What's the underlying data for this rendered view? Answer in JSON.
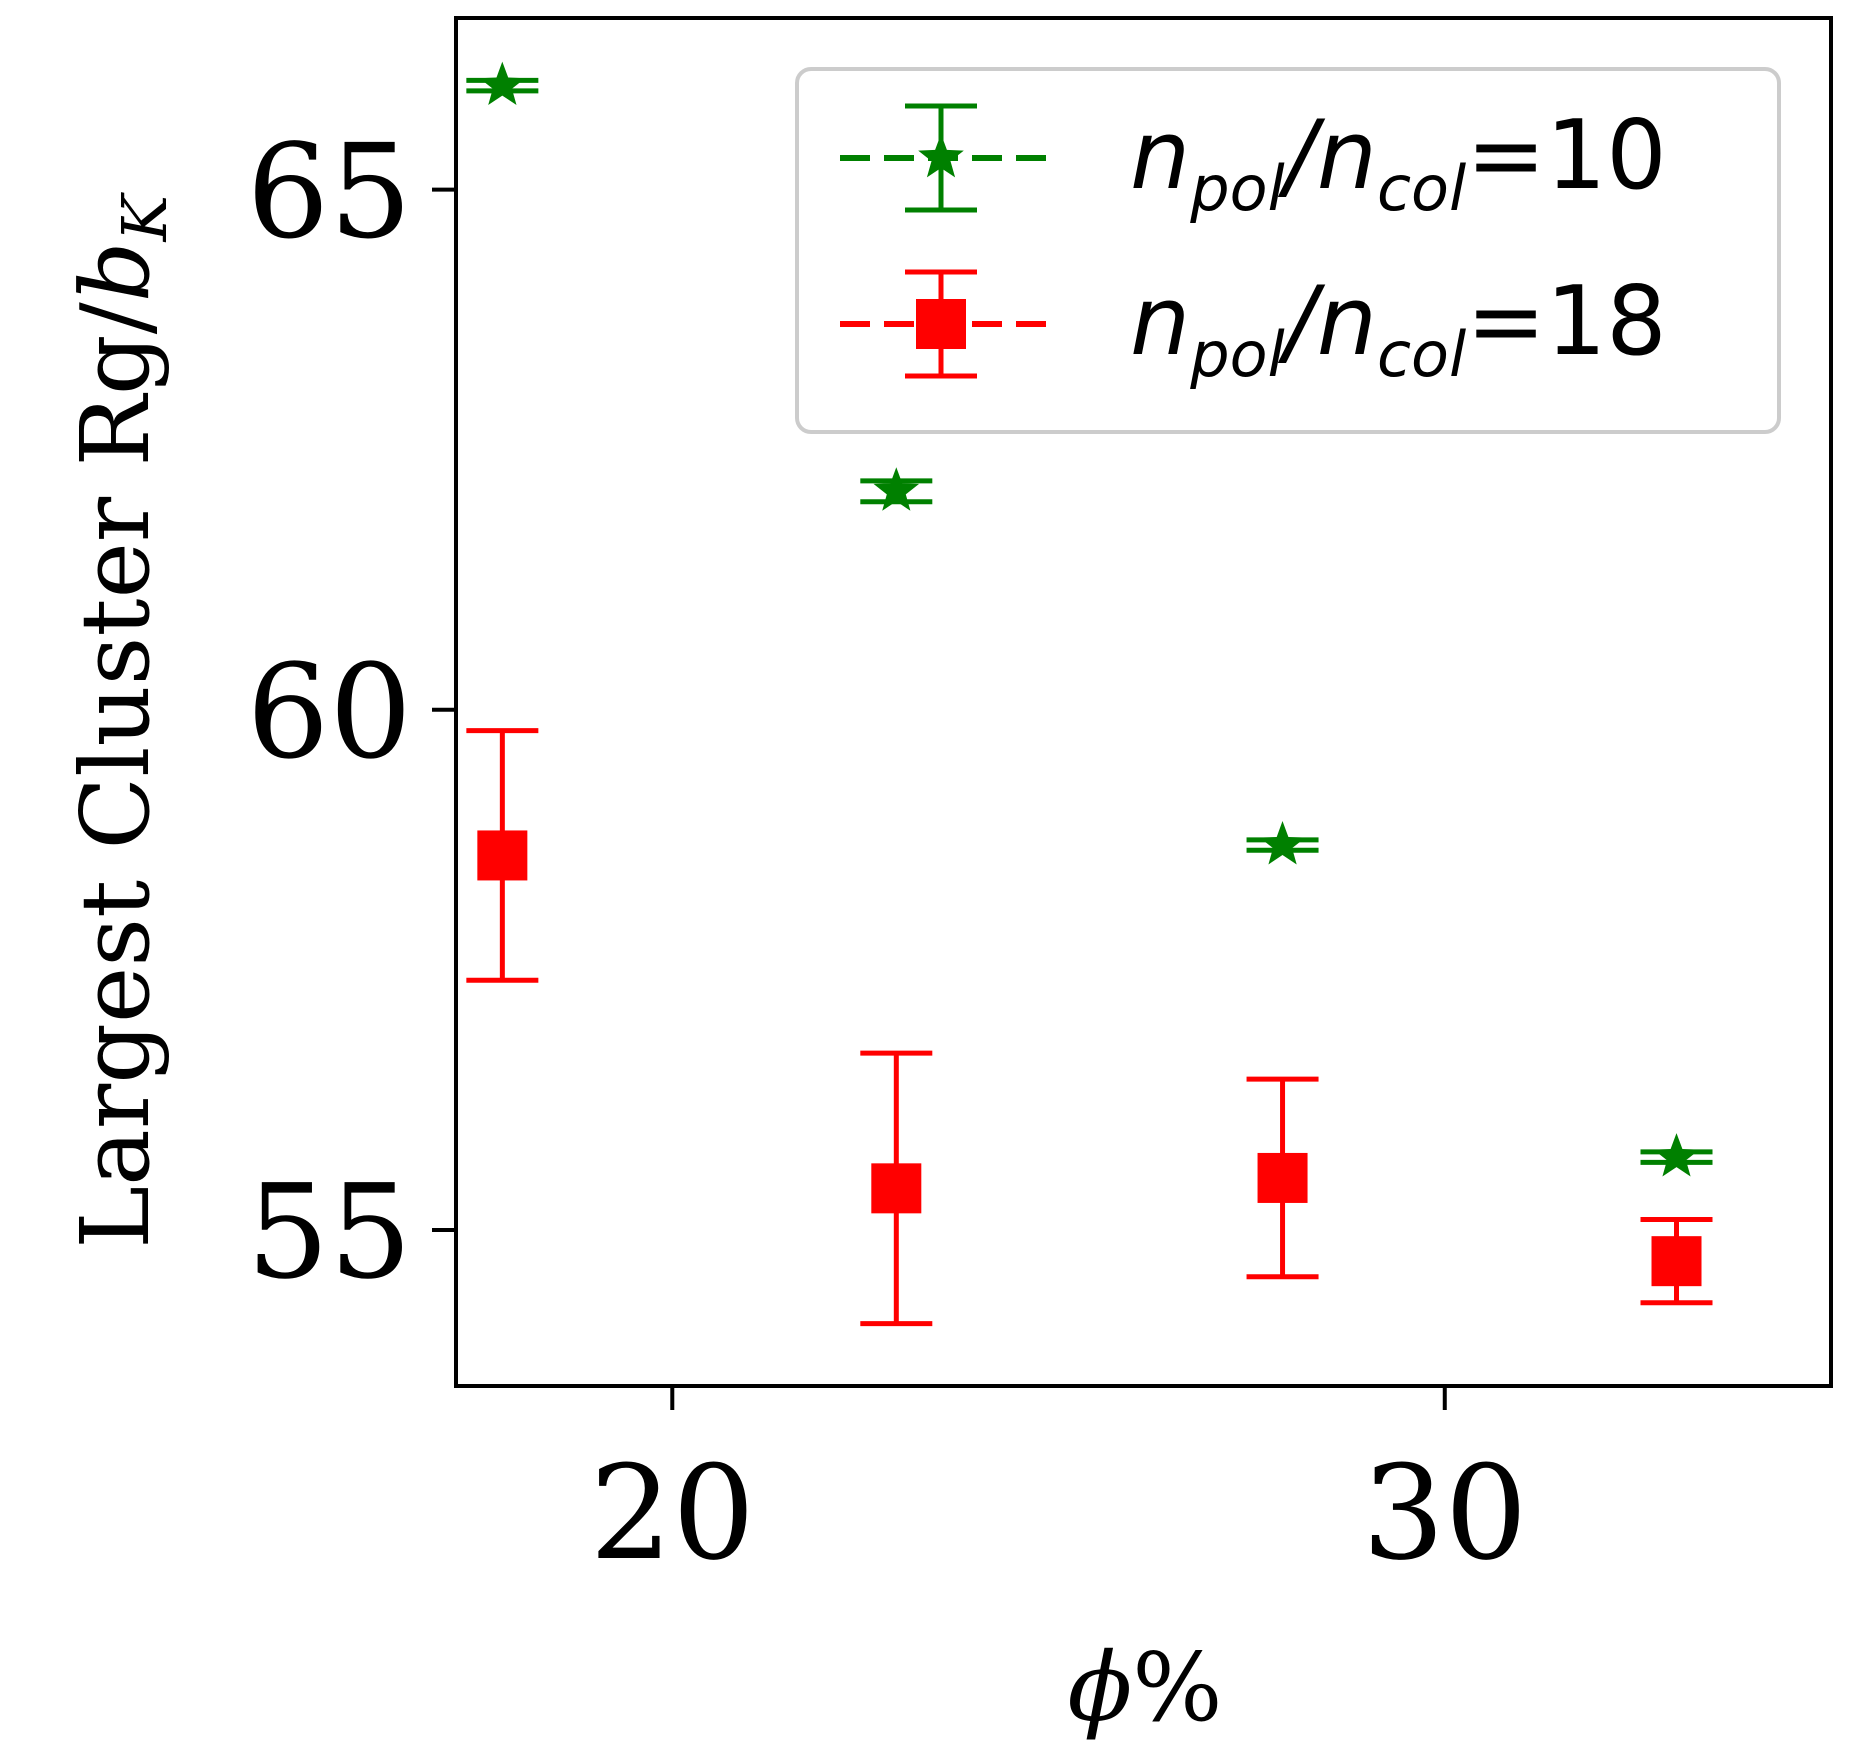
{
  "chart_data": {
    "type": "scatter",
    "title": "",
    "xlabel_symbol": "ϕ",
    "xlabel_unit": "%",
    "ylabel_text": "Largest Cluster Rg/",
    "ylabel_symbol": "b",
    "ylabel_sub": "K",
    "xlim": [
      17.2,
      35.0
    ],
    "ylim": [
      53.5,
      66.65
    ],
    "xticks": [
      20,
      30
    ],
    "xtick_labels": [
      "20",
      "30"
    ],
    "yticks": [
      55,
      60,
      65
    ],
    "ytick_labels": [
      "55",
      "60",
      "65"
    ],
    "grid": false,
    "legend_position": "top-right",
    "series": [
      {
        "name": "n_pol/n_col=10",
        "legend_base": "n",
        "legend_sub1": "pol",
        "legend_sep": "/",
        "legend_sub2": "col",
        "legend_value": "=10",
        "color": "#008000",
        "marker": "star",
        "x": [
          17.8,
          22.9,
          27.9,
          33.0
        ],
        "y": [
          66.0,
          62.1,
          58.7,
          55.7
        ],
        "err": [
          0.05,
          0.1,
          0.05,
          0.05
        ]
      },
      {
        "name": "n_pol/n_col=18",
        "legend_base": "n",
        "legend_sub1": "pol",
        "legend_sep": "/",
        "legend_sub2": "col",
        "legend_value": "=18",
        "color": "#ff0000",
        "marker": "square",
        "x": [
          17.8,
          22.9,
          27.9,
          33.0
        ],
        "y": [
          58.6,
          55.4,
          55.5,
          54.7
        ],
        "err": [
          1.2,
          1.3,
          0.95,
          0.4
        ]
      }
    ]
  }
}
